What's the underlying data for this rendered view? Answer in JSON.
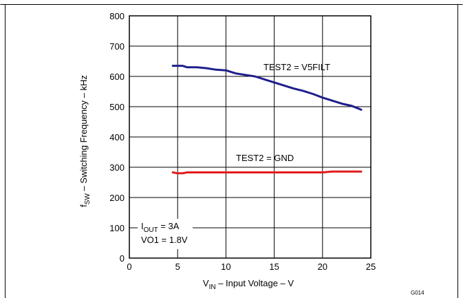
{
  "chart_data": {
    "type": "line",
    "xlabel": {
      "main": "V",
      "sub": "IN",
      "rest": " – Input Voltage – V"
    },
    "ylabel": {
      "main": "f",
      "sub": "SW",
      "rest": " – Switching Frequency – kHz"
    },
    "xlim": [
      0,
      25
    ],
    "ylim": [
      0,
      800
    ],
    "xticks": [
      0,
      5,
      10,
      15,
      20,
      25
    ],
    "yticks": [
      0,
      100,
      200,
      300,
      400,
      500,
      600,
      700,
      800
    ],
    "grid": true,
    "figure_id": "G014",
    "annotations": {
      "iout": {
        "main": "I",
        "sub": "OUT",
        "rest": " = 3A"
      },
      "vo1": "VO1 = 1.8V"
    },
    "series": [
      {
        "name": "TEST2 = V5FILT",
        "color": "#1e1e8c",
        "x": [
          4.5,
          5.5,
          6,
          7,
          8,
          9,
          10,
          11,
          12,
          13,
          14,
          15,
          16,
          17,
          18,
          19,
          20,
          21,
          22,
          23,
          24
        ],
        "y": [
          635,
          635,
          630,
          630,
          627,
          622,
          620,
          610,
          605,
          600,
          590,
          580,
          570,
          560,
          552,
          542,
          530,
          520,
          510,
          503,
          490
        ]
      },
      {
        "name": "TEST2 = GND",
        "color": "#e21b1b",
        "x": [
          4.5,
          5,
          5.5,
          6,
          8,
          10,
          12,
          14,
          16,
          18,
          20,
          21,
          22,
          23,
          24
        ],
        "y": [
          283,
          280,
          280,
          283,
          283,
          283,
          283,
          283,
          283,
          283,
          283,
          286,
          286,
          286,
          286
        ]
      }
    ]
  }
}
